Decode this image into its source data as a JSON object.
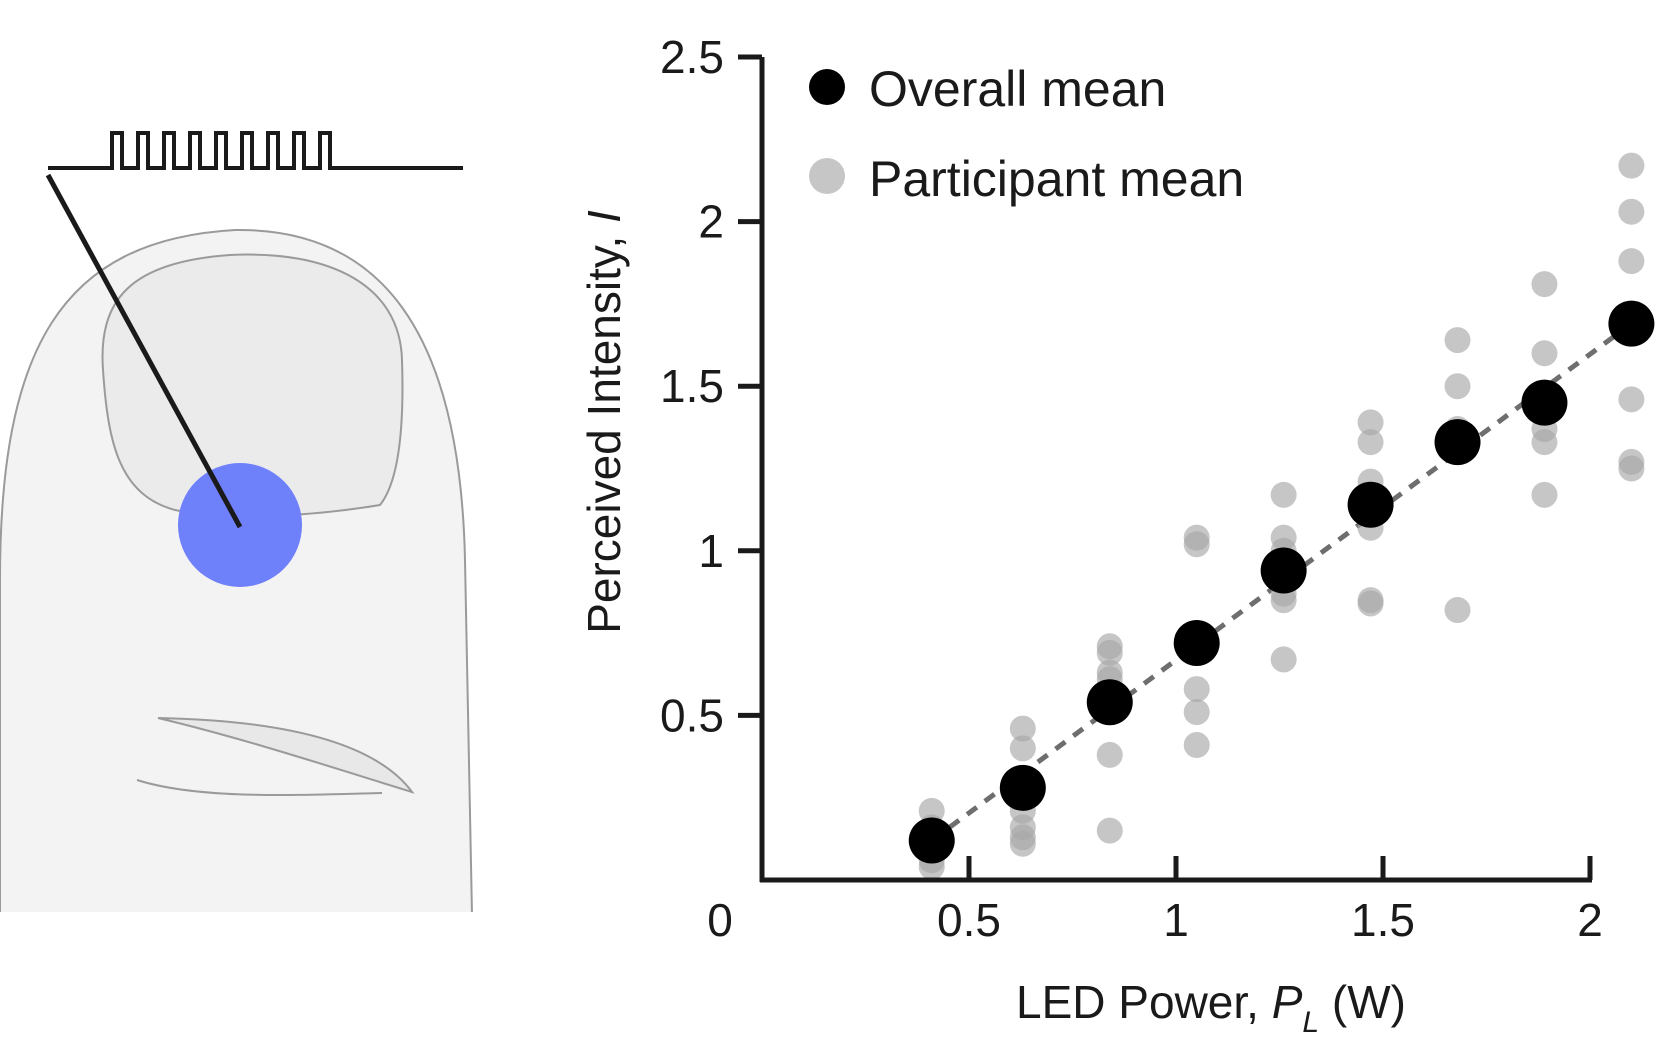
{
  "colors": {
    "overall": "#000000",
    "participant": "#a8a8a8",
    "fit_line": "#6e6e6e",
    "led": "#6f80fb",
    "finger_fill": "#f3f3f3",
    "nail_fill": "#ececec",
    "outline": "#9a9a9a",
    "axis": "#1a1a1a"
  },
  "illustration": {
    "pulse_train_count": 9
  },
  "chart_data": {
    "type": "scatter",
    "title": "",
    "xlabel": "LED Power, ",
    "xlabel_symbol": "P",
    "xlabel_subscript": "L",
    "xlabel_unit": " (W)",
    "ylabel": "Perceived Intensity, ",
    "ylabel_symbol": "I",
    "xlim": [
      0,
      2
    ],
    "ylim": [
      0,
      2.5
    ],
    "xticks": [
      0.5,
      1,
      1.5,
      2
    ],
    "xtick_labels": [
      "0.5",
      "1",
      "1.5",
      "2"
    ],
    "yticks": [
      0.5,
      1,
      1.5,
      2,
      2.5
    ],
    "ytick_labels": [
      "0.5",
      "1",
      "1.5",
      "2",
      "2.5"
    ],
    "origin_label": "0",
    "legend": {
      "placement": "top-left",
      "entries": [
        "Overall mean",
        "Participant mean"
      ]
    },
    "series": [
      {
        "name": "Participant mean",
        "points": [
          {
            "x": 0.41,
            "y": 0.21
          },
          {
            "x": 0.41,
            "y": 0.16
          },
          {
            "x": 0.41,
            "y": 0.1
          },
          {
            "x": 0.41,
            "y": 0.06
          },
          {
            "x": 0.41,
            "y": 0.04
          },
          {
            "x": 0.63,
            "y": 0.46
          },
          {
            "x": 0.63,
            "y": 0.4
          },
          {
            "x": 0.63,
            "y": 0.21
          },
          {
            "x": 0.63,
            "y": 0.16
          },
          {
            "x": 0.63,
            "y": 0.13
          },
          {
            "x": 0.63,
            "y": 0.11
          },
          {
            "x": 0.84,
            "y": 0.71
          },
          {
            "x": 0.84,
            "y": 0.69
          },
          {
            "x": 0.84,
            "y": 0.63
          },
          {
            "x": 0.84,
            "y": 0.61
          },
          {
            "x": 0.84,
            "y": 0.38
          },
          {
            "x": 0.84,
            "y": 0.15
          },
          {
            "x": 1.05,
            "y": 1.04
          },
          {
            "x": 1.05,
            "y": 1.02
          },
          {
            "x": 1.05,
            "y": 0.73
          },
          {
            "x": 1.05,
            "y": 0.58
          },
          {
            "x": 1.05,
            "y": 0.51
          },
          {
            "x": 1.05,
            "y": 0.41
          },
          {
            "x": 1.26,
            "y": 1.17
          },
          {
            "x": 1.26,
            "y": 1.04
          },
          {
            "x": 1.26,
            "y": 1.0
          },
          {
            "x": 1.26,
            "y": 0.87
          },
          {
            "x": 1.26,
            "y": 0.85
          },
          {
            "x": 1.26,
            "y": 0.67
          },
          {
            "x": 1.47,
            "y": 1.39
          },
          {
            "x": 1.47,
            "y": 1.33
          },
          {
            "x": 1.47,
            "y": 1.21
          },
          {
            "x": 1.47,
            "y": 1.07
          },
          {
            "x": 1.47,
            "y": 0.85
          },
          {
            "x": 1.47,
            "y": 0.84
          },
          {
            "x": 1.68,
            "y": 1.64
          },
          {
            "x": 1.68,
            "y": 1.5
          },
          {
            "x": 1.68,
            "y": 1.37
          },
          {
            "x": 1.68,
            "y": 1.35
          },
          {
            "x": 1.68,
            "y": 0.82
          },
          {
            "x": 1.89,
            "y": 1.81
          },
          {
            "x": 1.89,
            "y": 1.6
          },
          {
            "x": 1.89,
            "y": 1.42
          },
          {
            "x": 1.89,
            "y": 1.37
          },
          {
            "x": 1.89,
            "y": 1.33
          },
          {
            "x": 1.89,
            "y": 1.17
          },
          {
            "x": 2.1,
            "y": 2.17
          },
          {
            "x": 2.1,
            "y": 2.03
          },
          {
            "x": 2.1,
            "y": 1.88
          },
          {
            "x": 2.1,
            "y": 1.46
          },
          {
            "x": 2.1,
            "y": 1.27
          },
          {
            "x": 2.1,
            "y": 1.25
          }
        ]
      },
      {
        "name": "Overall mean",
        "points": [
          {
            "x": 0.41,
            "y": 0.12
          },
          {
            "x": 0.63,
            "y": 0.28
          },
          {
            "x": 0.84,
            "y": 0.54
          },
          {
            "x": 1.05,
            "y": 0.72
          },
          {
            "x": 1.26,
            "y": 0.94
          },
          {
            "x": 1.47,
            "y": 1.14
          },
          {
            "x": 1.68,
            "y": 1.33
          },
          {
            "x": 1.89,
            "y": 1.45
          },
          {
            "x": 2.1,
            "y": 1.69
          }
        ]
      }
    ],
    "fit_line": {
      "style": "dashed",
      "x": [
        0.41,
        2.1
      ],
      "y": [
        0.12,
        1.69
      ]
    }
  }
}
